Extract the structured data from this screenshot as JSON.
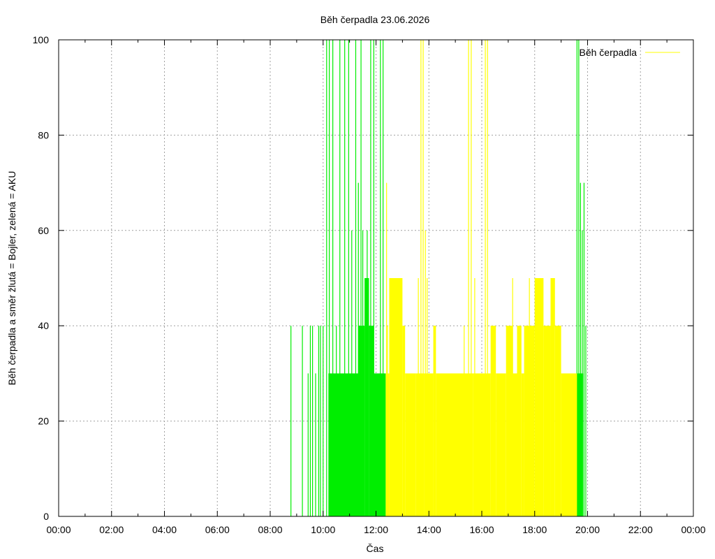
{
  "chart_data": {
    "type": "bar",
    "title": "Běh čerpadla 23.06.2026",
    "xlabel": "Čas",
    "ylabel": "Běh čerpadla a směr žlutá = Bojler, zelená = AKU",
    "xlim": [
      "00:00",
      "24:00"
    ],
    "ylim": [
      0,
      100
    ],
    "x_ticks": [
      "00:00",
      "02:00",
      "04:00",
      "06:00",
      "08:00",
      "10:00",
      "12:00",
      "14:00",
      "16:00",
      "18:00",
      "20:00",
      "22:00",
      "00:00"
    ],
    "y_ticks": [
      "0",
      "20",
      "40",
      "60",
      "80",
      "100"
    ],
    "grid": true,
    "legend": {
      "position": "top-right",
      "label": "Běh čerpadla"
    },
    "colors": {
      "boiler": "#ffff00",
      "aku": "#00ee00",
      "grid": "#a0a0a0"
    },
    "series": [
      {
        "name": "Běh čerpadla",
        "color": "#00ee00",
        "segments": [
          {
            "start": "10:12",
            "end": "11:20",
            "value": 30
          },
          {
            "start": "11:20",
            "end": "11:34",
            "value": 40
          },
          {
            "start": "11:34",
            "end": "11:44",
            "value": 50
          },
          {
            "start": "11:44",
            "end": "11:55",
            "value": 40
          },
          {
            "start": "11:55",
            "end": "12:22",
            "value": 30
          },
          {
            "start": "19:36",
            "end": "19:50",
            "value": 30
          }
        ],
        "spikes": [
          {
            "t": "08:47",
            "value": 40
          },
          {
            "t": "09:13",
            "value": 40
          },
          {
            "t": "09:26",
            "value": 30
          },
          {
            "t": "09:31",
            "value": 40
          },
          {
            "t": "09:36",
            "value": 40
          },
          {
            "t": "09:43",
            "value": 30
          },
          {
            "t": "09:50",
            "value": 40
          },
          {
            "t": "09:54",
            "value": 40
          },
          {
            "t": "10:00",
            "value": 40
          },
          {
            "t": "10:08",
            "value": 100
          },
          {
            "t": "10:14",
            "value": 100
          },
          {
            "t": "10:22",
            "value": 100
          },
          {
            "t": "10:30",
            "value": 40
          },
          {
            "t": "10:38",
            "value": 100
          },
          {
            "t": "10:49",
            "value": 100
          },
          {
            "t": "10:58",
            "value": 100
          },
          {
            "t": "11:05",
            "value": 60
          },
          {
            "t": "11:14",
            "value": 100
          },
          {
            "t": "11:20",
            "value": 70
          },
          {
            "t": "11:26",
            "value": 100
          },
          {
            "t": "11:30",
            "value": 60
          },
          {
            "t": "11:40",
            "value": 60
          },
          {
            "t": "11:48",
            "value": 100
          },
          {
            "t": "11:55",
            "value": 100
          },
          {
            "t": "12:10",
            "value": 100
          },
          {
            "t": "12:16",
            "value": 100
          },
          {
            "t": "19:36",
            "value": 100
          },
          {
            "t": "19:40",
            "value": 100
          },
          {
            "t": "19:44",
            "value": 70
          },
          {
            "t": "19:48",
            "value": 60
          },
          {
            "t": "19:52",
            "value": 70
          },
          {
            "t": "19:56",
            "value": 40
          }
        ]
      },
      {
        "name": "Běh čerpadla",
        "color": "#ffff00",
        "segments": [
          {
            "start": "12:22",
            "end": "12:30",
            "value": 30
          },
          {
            "start": "12:30",
            "end": "13:00",
            "value": 50
          },
          {
            "start": "13:00",
            "end": "13:06",
            "value": 40
          },
          {
            "start": "13:06",
            "end": "13:30",
            "value": 30
          },
          {
            "start": "13:30",
            "end": "13:50",
            "value": 30
          },
          {
            "start": "13:50",
            "end": "14:10",
            "value": 30
          },
          {
            "start": "14:10",
            "end": "14:16",
            "value": 40
          },
          {
            "start": "14:16",
            "end": "15:40",
            "value": 30
          },
          {
            "start": "15:40",
            "end": "16:20",
            "value": 30
          },
          {
            "start": "16:20",
            "end": "16:32",
            "value": 40
          },
          {
            "start": "16:32",
            "end": "16:55",
            "value": 30
          },
          {
            "start": "16:55",
            "end": "17:10",
            "value": 40
          },
          {
            "start": "17:10",
            "end": "17:20",
            "value": 30
          },
          {
            "start": "17:20",
            "end": "17:30",
            "value": 40
          },
          {
            "start": "17:30",
            "end": "17:36",
            "value": 30
          },
          {
            "start": "17:36",
            "end": "18:00",
            "value": 40
          },
          {
            "start": "18:00",
            "end": "18:20",
            "value": 50
          },
          {
            "start": "18:20",
            "end": "18:36",
            "value": 40
          },
          {
            "start": "18:36",
            "end": "18:46",
            "value": 50
          },
          {
            "start": "18:46",
            "end": "19:00",
            "value": 40
          },
          {
            "start": "19:00",
            "end": "19:36",
            "value": 30
          }
        ],
        "spikes": [
          {
            "t": "12:24",
            "value": 70
          },
          {
            "t": "12:26",
            "value": 40
          },
          {
            "t": "13:36",
            "value": 50
          },
          {
            "t": "13:42",
            "value": 100
          },
          {
            "t": "13:47",
            "value": 100
          },
          {
            "t": "13:52",
            "value": 60
          },
          {
            "t": "13:56",
            "value": 50
          },
          {
            "t": "15:20",
            "value": 40
          },
          {
            "t": "15:30",
            "value": 100
          },
          {
            "t": "15:36",
            "value": 100
          },
          {
            "t": "15:44",
            "value": 50
          },
          {
            "t": "16:08",
            "value": 100
          },
          {
            "t": "16:13",
            "value": 100
          },
          {
            "t": "17:10",
            "value": 50
          },
          {
            "t": "17:48",
            "value": 50
          },
          {
            "t": "18:12",
            "value": 50
          }
        ]
      }
    ]
  }
}
